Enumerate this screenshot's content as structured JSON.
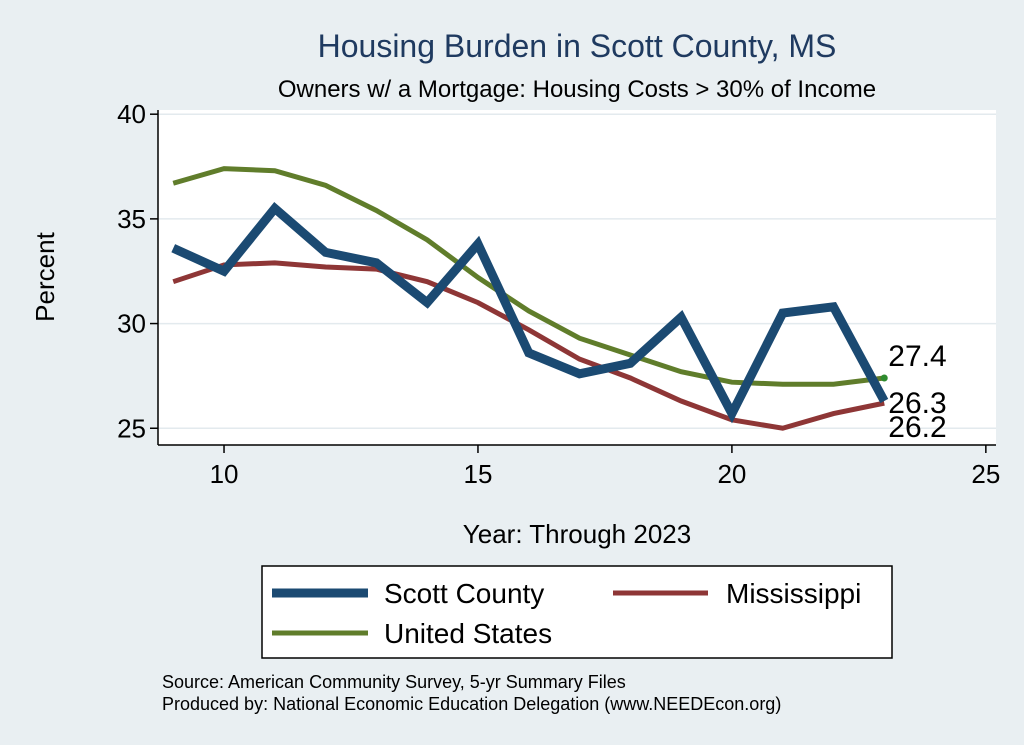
{
  "chart_data": {
    "type": "line",
    "title": "Housing Burden in Scott County, MS",
    "subtitle": "Owners w/ a Mortgage: Housing Costs > 30% of Income",
    "xlabel": "Year: Through 2023",
    "ylabel": "Percent",
    "xlim": [
      8.7,
      25.2
    ],
    "ylim": [
      24.2,
      40.2
    ],
    "xticks": [
      10,
      15,
      20,
      25
    ],
    "yticks": [
      25,
      30,
      35,
      40
    ],
    "x": [
      9,
      10,
      11,
      12,
      13,
      14,
      15,
      16,
      17,
      18,
      19,
      20,
      21,
      22,
      23
    ],
    "series": [
      {
        "name": "Scott County",
        "color": "#1b4a72",
        "width": 9,
        "values": [
          33.6,
          32.5,
          35.5,
          33.4,
          32.9,
          31.0,
          33.8,
          28.6,
          27.6,
          28.1,
          30.3,
          25.7,
          30.5,
          30.8,
          26.3
        ],
        "end_label": "26.3"
      },
      {
        "name": "Mississippi",
        "color": "#8e3636",
        "width": 5,
        "values": [
          32.0,
          32.8,
          32.9,
          32.7,
          32.6,
          32.0,
          31.0,
          29.7,
          28.3,
          27.4,
          26.3,
          25.4,
          25.0,
          25.7,
          26.2
        ],
        "end_label": "26.2"
      },
      {
        "name": "United States",
        "color": "#607d2b",
        "width": 5,
        "values": [
          36.7,
          37.4,
          37.3,
          36.6,
          35.4,
          34.0,
          32.2,
          30.6,
          29.3,
          28.5,
          27.7,
          27.2,
          27.1,
          27.1,
          27.4
        ],
        "end_label": "27.4"
      }
    ],
    "legend": {
      "position": "bottom",
      "entries": [
        "Scott County",
        "Mississippi",
        "United States"
      ]
    }
  },
  "source_note": {
    "line1": "Source: American Community Survey, 5-yr Summary Files",
    "line2": "Produced by: National Economic Education Delegation (www.NEEDEcon.org)"
  }
}
